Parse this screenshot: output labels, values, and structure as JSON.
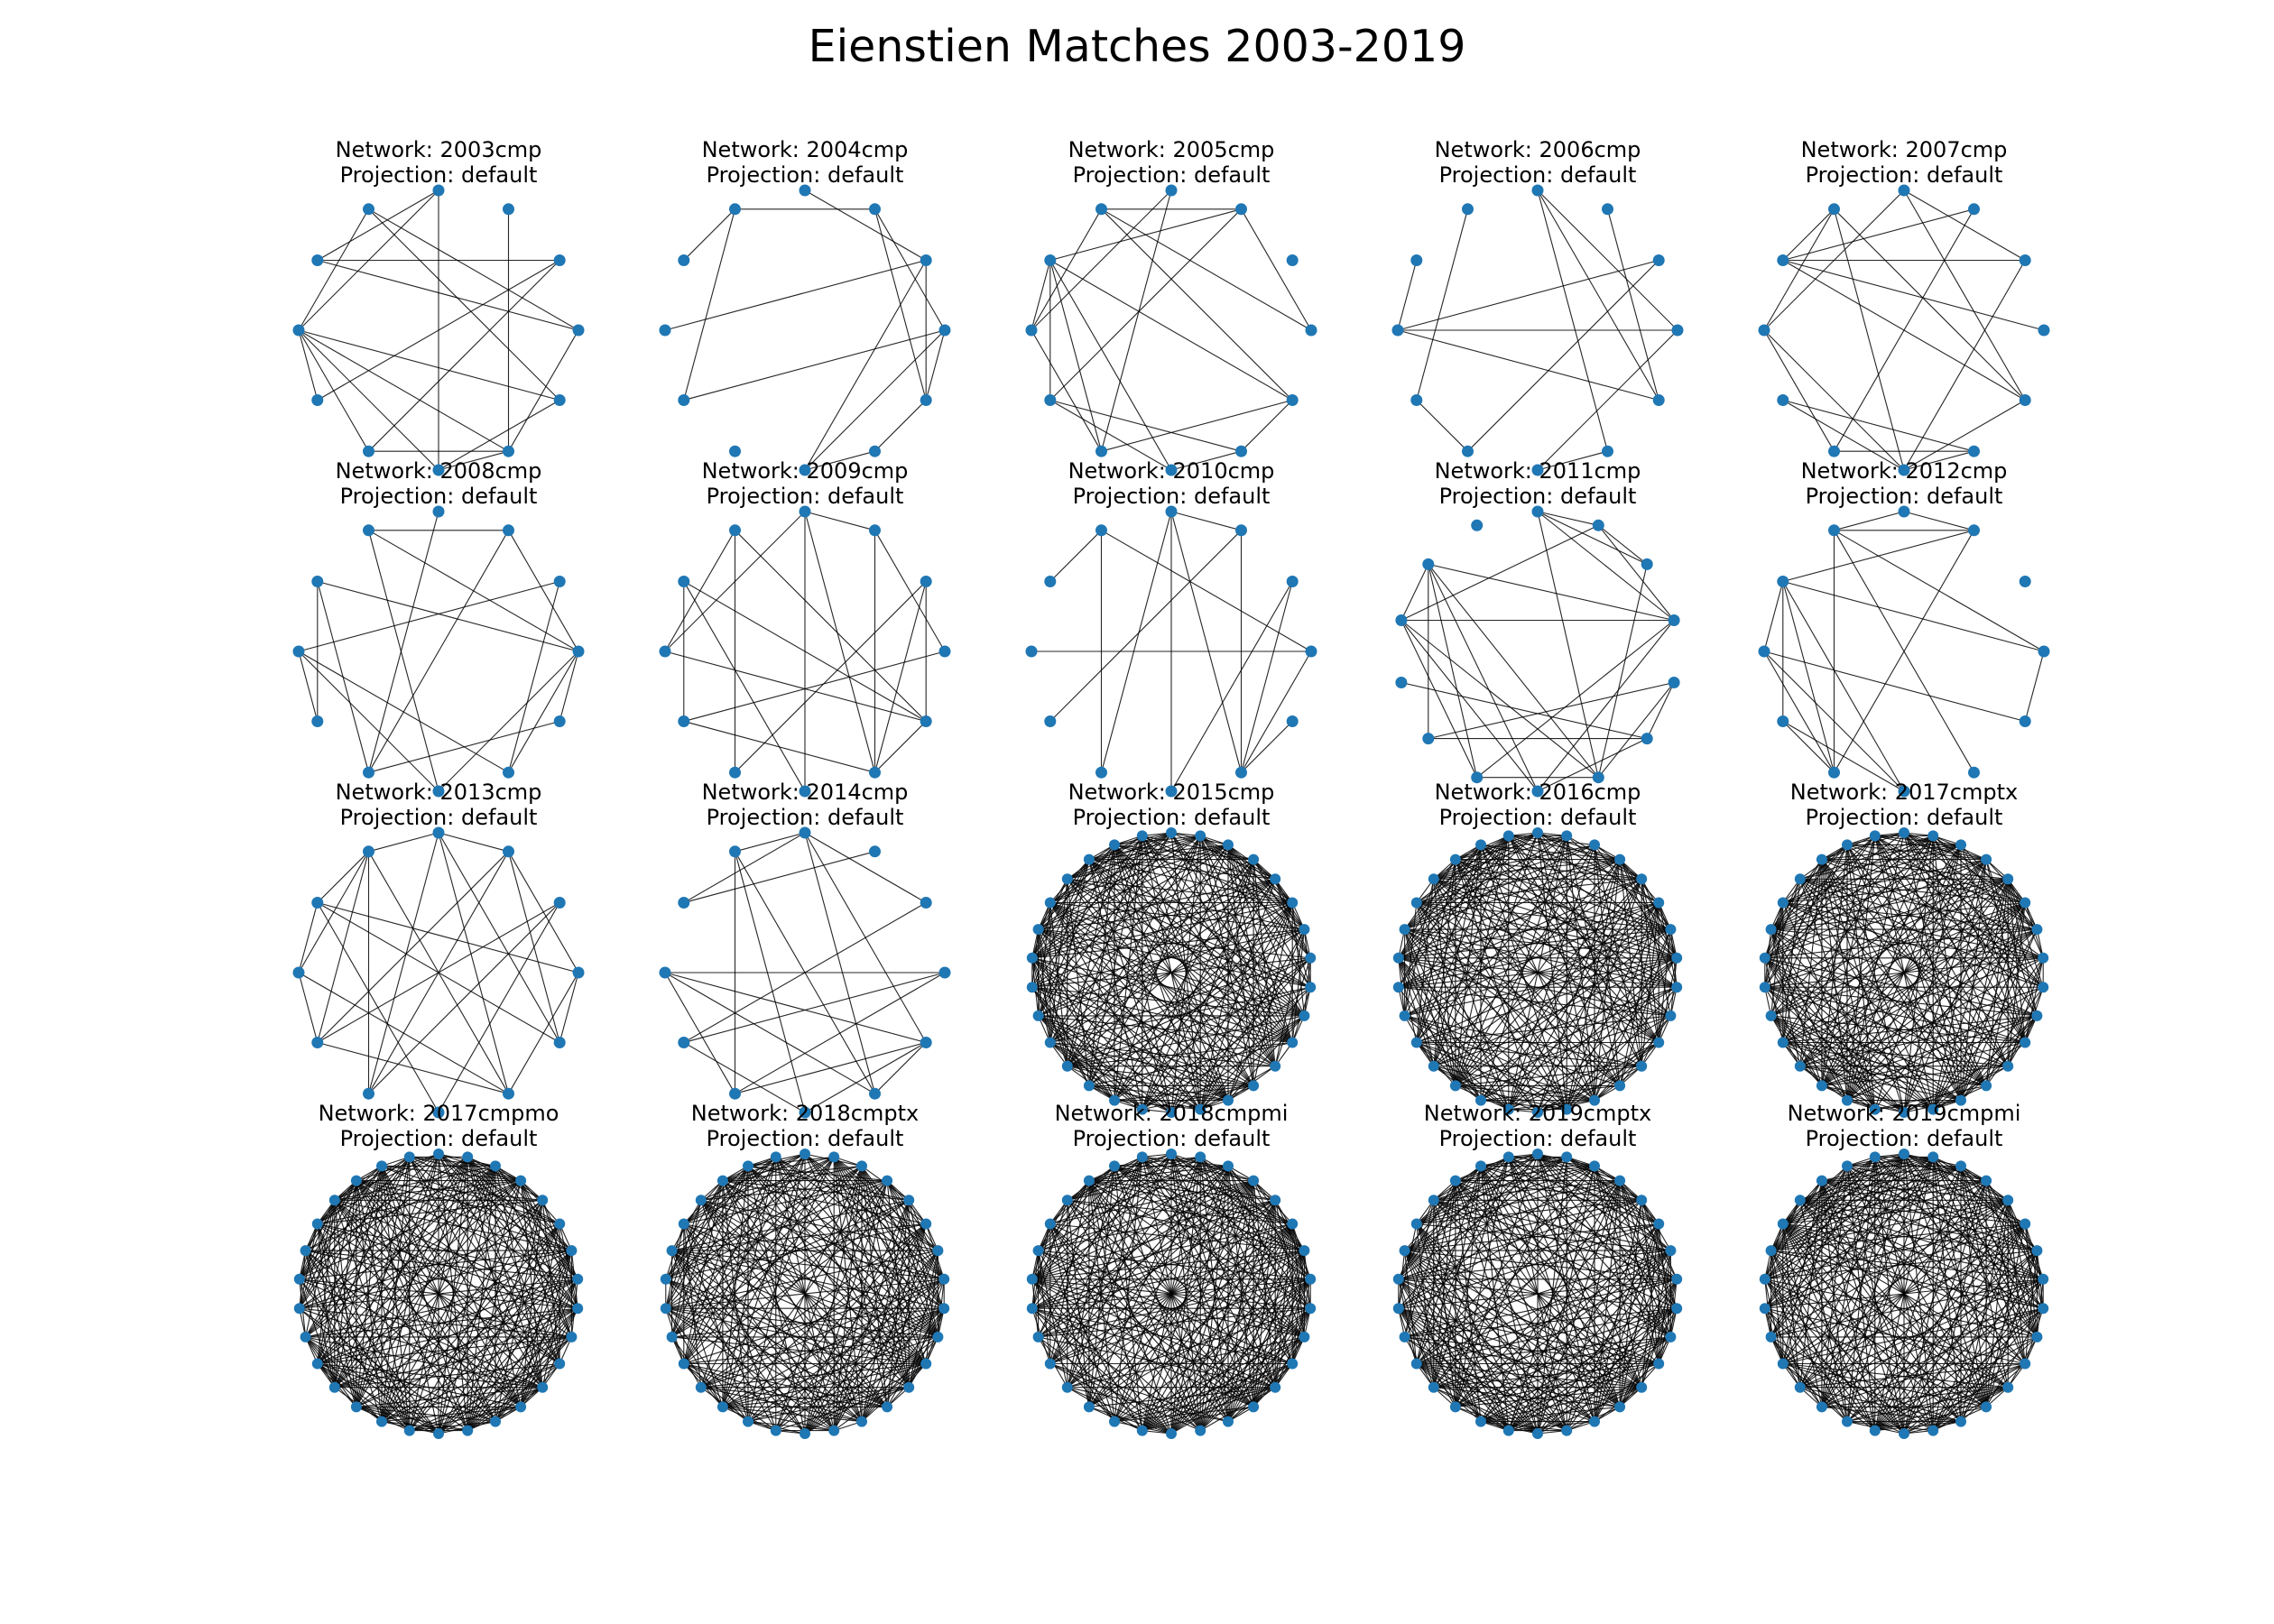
{
  "figure": {
    "title": "Eienstien Matches 2003-2019",
    "projection_prefix": "Projection: ",
    "network_prefix": "Network: ",
    "node_color": "#1f77b4",
    "edge_color": "#000000"
  },
  "networks": [
    {
      "name": "2003cmp",
      "projection": "default",
      "nodes": 12
    },
    {
      "name": "2004cmp",
      "projection": "default",
      "nodes": 12
    },
    {
      "name": "2005cmp",
      "projection": "default",
      "nodes": 12
    },
    {
      "name": "2006cmp",
      "projection": "default",
      "nodes": 12
    },
    {
      "name": "2007cmp",
      "projection": "default",
      "nodes": 12
    },
    {
      "name": "2008cmp",
      "projection": "default",
      "nodes": 12
    },
    {
      "name": "2009cmp",
      "projection": "default",
      "nodes": 12
    },
    {
      "name": "2010cmp",
      "projection": "default",
      "nodes": 12
    },
    {
      "name": "2011cmp",
      "projection": "default",
      "nodes": 14
    },
    {
      "name": "2012cmp",
      "projection": "default",
      "nodes": 12
    },
    {
      "name": "2013cmp",
      "projection": "default",
      "nodes": 12
    },
    {
      "name": "2014cmp",
      "projection": "default",
      "nodes": 12
    },
    {
      "name": "2015cmp",
      "projection": "default",
      "nodes": 30
    },
    {
      "name": "2016cmp",
      "projection": "default",
      "nodes": 30
    },
    {
      "name": "2017cmptx",
      "projection": "default",
      "nodes": 30
    },
    {
      "name": "2017cmpmo",
      "projection": "default",
      "nodes": 30
    },
    {
      "name": "2018cmptx",
      "projection": "default",
      "nodes": 30
    },
    {
      "name": "2018cmpmi",
      "projection": "default",
      "nodes": 30
    },
    {
      "name": "2019cmptx",
      "projection": "default",
      "nodes": 30
    },
    {
      "name": "2019cmpmi",
      "projection": "default",
      "nodes": 30
    }
  ]
}
